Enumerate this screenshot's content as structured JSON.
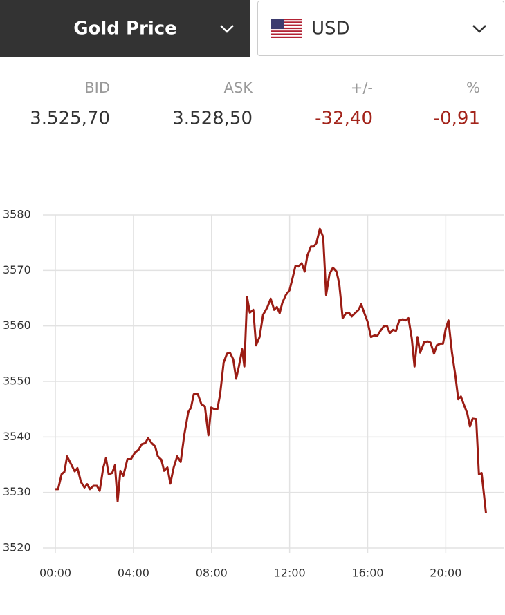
{
  "selector": {
    "metal": "Gold Price",
    "currency": "USD"
  },
  "quote": {
    "labels": [
      "BID",
      "ASK",
      "+/-",
      "%"
    ],
    "values": [
      "3.525,70",
      "3.528,50",
      "-32,40",
      "-0,91"
    ]
  },
  "chart_data": {
    "type": "line",
    "color": "#9b1c14",
    "grid": true,
    "xlim": [
      -0.64,
      23
    ],
    "ylim": [
      3520,
      3580
    ],
    "yticks": [
      3520,
      3530,
      3540,
      3550,
      3560,
      3570,
      3580
    ],
    "xticks": [
      {
        "value": 0,
        "label": "00:00"
      },
      {
        "value": 4,
        "label": "04:00"
      },
      {
        "value": 8,
        "label": "08:00"
      },
      {
        "value": 12,
        "label": "12:00"
      },
      {
        "value": 16,
        "label": "16:00"
      },
      {
        "value": 20,
        "label": "20:00"
      }
    ],
    "x": [
      0,
      0.14,
      0.32,
      0.46,
      0.6,
      0.82,
      0.99,
      1.13,
      1.31,
      1.49,
      1.63,
      1.77,
      1.95,
      2.13,
      2.27,
      2.45,
      2.59,
      2.73,
      2.91,
      3.05,
      3.19,
      3.33,
      3.48,
      3.69,
      3.87,
      4.08,
      4.26,
      4.43,
      4.61,
      4.75,
      4.93,
      5.11,
      5.25,
      5.43,
      5.57,
      5.74,
      5.89,
      6.06,
      6.24,
      6.42,
      6.6,
      6.81,
      6.95,
      7.09,
      7.3,
      7.48,
      7.66,
      7.84,
      7.98,
      8.16,
      8.3,
      8.44,
      8.62,
      8.79,
      8.94,
      9.11,
      9.26,
      9.4,
      9.57,
      9.68,
      9.82,
      9.96,
      10.14,
      10.28,
      10.46,
      10.64,
      10.85,
      11.03,
      11.21,
      11.35,
      11.49,
      11.63,
      11.81,
      11.99,
      12.13,
      12.3,
      12.45,
      12.62,
      12.77,
      12.91,
      13.09,
      13.23,
      13.37,
      13.55,
      13.72,
      13.87,
      14.04,
      14.22,
      14.4,
      14.54,
      14.72,
      14.89,
      15.04,
      15.18,
      15.35,
      15.53,
      15.67,
      15.85,
      15.99,
      16.17,
      16.35,
      16.49,
      16.67,
      16.84,
      16.99,
      17.13,
      17.3,
      17.45,
      17.62,
      17.8,
      17.94,
      18.09,
      18.26,
      18.4,
      18.55,
      18.69,
      18.9,
      19.08,
      19.22,
      19.4,
      19.54,
      19.72,
      19.86,
      20,
      20.14,
      20.32,
      20.5,
      20.64,
      20.78,
      20.92,
      21.1,
      21.24,
      21.38,
      21.56,
      21.7,
      21.84,
      22.06
    ],
    "values": [
      3530.6,
      3530.6,
      3533.3,
      3533.7,
      3536.5,
      3535,
      3533.8,
      3534.4,
      3531.9,
      3530.9,
      3531.5,
      3530.6,
      3531.2,
      3531.2,
      3530.3,
      3534.4,
      3536.2,
      3533.3,
      3533.5,
      3534.9,
      3528.4,
      3533.9,
      3533,
      3536,
      3536,
      3537.2,
      3537.7,
      3538.7,
      3538.9,
      3539.8,
      3538.9,
      3538.3,
      3536.5,
      3535.9,
      3533.9,
      3534.5,
      3531.6,
      3534.5,
      3536.5,
      3535.5,
      3540.3,
      3544.5,
      3545.3,
      3547.7,
      3547.7,
      3545.9,
      3545.5,
      3540.3,
      3545.3,
      3545,
      3545,
      3547.7,
      3553.4,
      3555,
      3555.2,
      3554,
      3550.5,
      3552.7,
      3555.8,
      3552.7,
      3565.2,
      3562.4,
      3562.9,
      3556.5,
      3558,
      3562,
      3563.3,
      3564.9,
      3562.9,
      3563.4,
      3562.3,
      3564.2,
      3565.6,
      3566.4,
      3568.3,
      3570.8,
      3570.7,
      3571.3,
      3569.8,
      3572.7,
      3574.3,
      3574.3,
      3574.9,
      3577.5,
      3576,
      3565.6,
      3569.3,
      3570.5,
      3569.8,
      3567.7,
      3561.4,
      3562.3,
      3562.4,
      3561.7,
      3562.3,
      3562.9,
      3563.9,
      3562.1,
      3560.8,
      3558,
      3558.3,
      3558.2,
      3559.2,
      3560,
      3560,
      3558.7,
      3559.3,
      3559.1,
      3561,
      3561.2,
      3561,
      3561.4,
      3557.7,
      3552.7,
      3558,
      3555.2,
      3557.1,
      3557.2,
      3557,
      3555,
      3556.5,
      3556.8,
      3556.8,
      3559.5,
      3561,
      3555.2,
      3550.9,
      3546.8,
      3547.3,
      3545.9,
      3544.3,
      3541.9,
      3543.3,
      3543.2,
      3533.3,
      3533.5,
      3526.3
    ]
  }
}
